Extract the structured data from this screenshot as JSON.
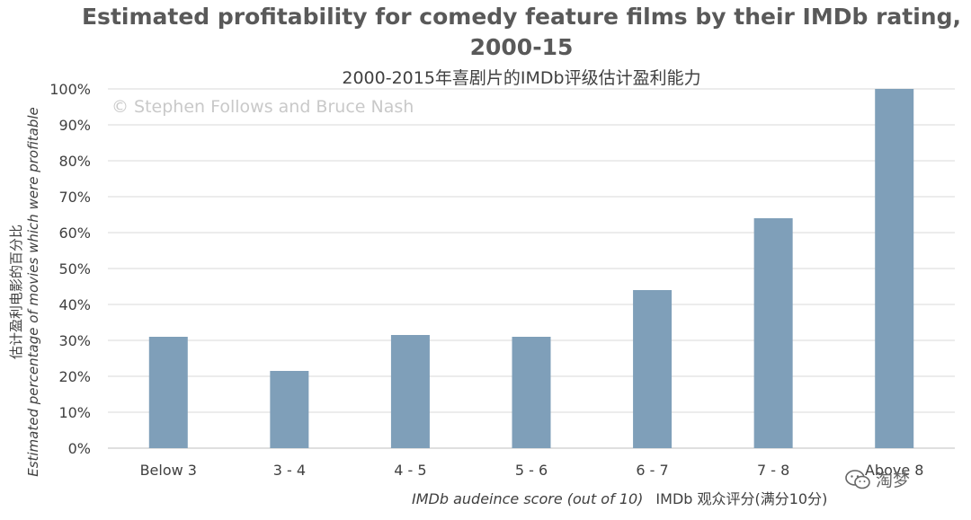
{
  "chart_data": {
    "type": "bar",
    "title": "Estimated profitability for comedy feature films by their IMDb rating, 2000-15",
    "subtitle": "2000-2015年喜剧片的IMDb评级估计盈利能力",
    "copyright": "© Stephen Follows and Bruce Nash",
    "xlabel": "IMDb audeince score (out of 10)",
    "xlabel_zh": "IMDb 观众评分(满分10分)",
    "ylabel": "Estimated percentage of movies which were profitable",
    "ylabel_zh": "估计盈利电影的百分比",
    "categories": [
      "Below 3",
      "3 - 4",
      "4 - 5",
      "5 - 6",
      "6 - 7",
      "7 - 8",
      "Above 8"
    ],
    "values": [
      31,
      21.5,
      31.5,
      31,
      44,
      64,
      100
    ],
    "ylim": [
      0,
      100
    ],
    "yticks": [
      0,
      10,
      20,
      30,
      40,
      50,
      60,
      70,
      80,
      90,
      100
    ],
    "ytick_labels": [
      "0%",
      "10%",
      "20%",
      "30%",
      "40%",
      "50%",
      "60%",
      "70%",
      "80%",
      "90%",
      "100%"
    ],
    "grid": true,
    "bar_color": "#7f9fb9",
    "grid_color": "#d9d9d9"
  },
  "watermark": {
    "text": "淘梦",
    "icon": "wechat-icon"
  }
}
